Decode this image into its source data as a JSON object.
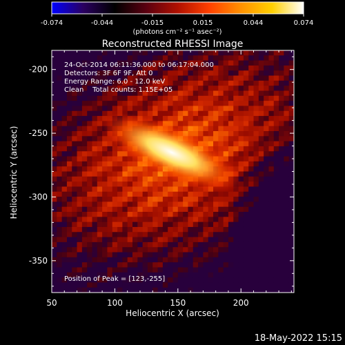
{
  "colorbar": {
    "ticks": [
      "-0.074",
      "-0.044",
      "-0.015",
      "0.015",
      "0.044",
      "0.074"
    ],
    "units": "(photons cm⁻² s⁻¹ asec⁻²)",
    "range": [
      -0.074,
      0.074
    ],
    "colors": [
      "#0000ff",
      "#2a0060",
      "#000000",
      "#5a0010",
      "#b01000",
      "#ff4000",
      "#ff9000",
      "#ffd000",
      "#ffffff"
    ]
  },
  "info": {
    "time": "24-Oct-2014 06:11:36.000 to 06:17:04.000",
    "detectors": "Detectors: 3F 6F 9F, Att 0",
    "energy": "Energy Range: 6.0 - 12.0 keV",
    "clean": "Clean    Total counts: 1.15E+05",
    "peak": "Position of Peak = [123,-255]"
  },
  "footer_date": "18-May-2022 15:15",
  "chart_data": {
    "type": "heatmap",
    "title": "Reconstructed RHESSI Image",
    "xlabel": "Heliocentric X (arcsec)",
    "ylabel": "Heliocentric Y (arcsec)",
    "xlim": [
      50,
      242
    ],
    "ylim": [
      -375,
      -185
    ],
    "xticks": [
      50,
      100,
      150,
      200
    ],
    "yticks": [
      -200,
      -250,
      -300,
      -350
    ],
    "peak": [
      123,
      -255
    ],
    "source_angle_deg": -25,
    "source_length": 60,
    "source_width": 14
  }
}
